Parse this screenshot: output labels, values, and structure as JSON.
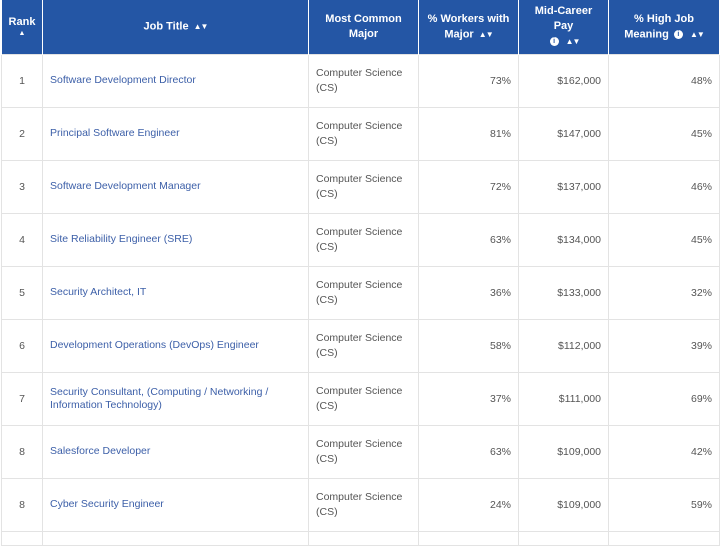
{
  "columns": {
    "rank": "Rank",
    "title": "Job Title",
    "major": "Most Common Major",
    "pct_workers": "% Workers with Major",
    "mid_pay": "Mid-Career Pay",
    "meaning": "% High Job Meaning"
  },
  "icons": {
    "sort": "sort-arrows-icon",
    "info": "info-icon"
  },
  "colors": {
    "header_bg": "#2456a5",
    "link_text": "#3c5fa8"
  },
  "rows": [
    {
      "rank": "1",
      "title": "Software Development Director",
      "major": "Computer Science (CS)",
      "pct": "73%",
      "pay": "$162,000",
      "meaning": "48%"
    },
    {
      "rank": "2",
      "title": "Principal Software Engineer",
      "major": "Computer Science (CS)",
      "pct": "81%",
      "pay": "$147,000",
      "meaning": "45%"
    },
    {
      "rank": "3",
      "title": "Software Development Manager",
      "major": "Computer Science (CS)",
      "pct": "72%",
      "pay": "$137,000",
      "meaning": "46%"
    },
    {
      "rank": "4",
      "title": "Site Reliability Engineer (SRE)",
      "major": "Computer Science (CS)",
      "pct": "63%",
      "pay": "$134,000",
      "meaning": "45%"
    },
    {
      "rank": "5",
      "title": "Security Architect, IT",
      "major": "Computer Science (CS)",
      "pct": "36%",
      "pay": "$133,000",
      "meaning": "32%"
    },
    {
      "rank": "6",
      "title": "Development Operations (DevOps) Engineer",
      "major": "Computer Science (CS)",
      "pct": "58%",
      "pay": "$112,000",
      "meaning": "39%"
    },
    {
      "rank": "7",
      "title": "Security Consultant, (Computing / Networking / Information Technology)",
      "major": "Computer Science (CS)",
      "pct": "37%",
      "pay": "$111,000",
      "meaning": "69%"
    },
    {
      "rank": "8",
      "title": "Salesforce Developer",
      "major": "Computer Science (CS)",
      "pct": "63%",
      "pay": "$109,000",
      "meaning": "42%"
    },
    {
      "rank": "8",
      "title": "Cyber Security Engineer",
      "major": "Computer Science (CS)",
      "pct": "24%",
      "pay": "$109,000",
      "meaning": "59%"
    }
  ]
}
